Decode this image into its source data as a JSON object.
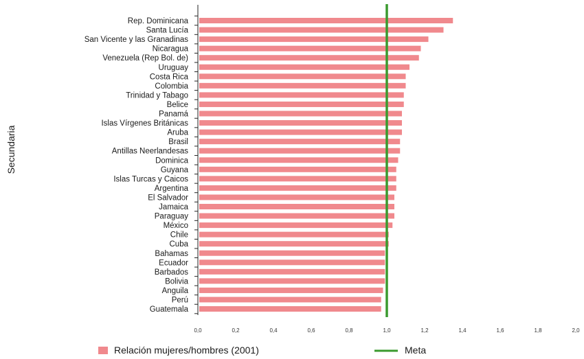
{
  "chart_data": {
    "type": "bar",
    "orientation": "horizontal",
    "ylabel": "Secundaria",
    "xlabel": "",
    "xlim": [
      0,
      2.0
    ],
    "x_ticks": [
      "0,0",
      "0,2",
      "0,4",
      "0,6",
      "0,8",
      "1,0",
      "1,2",
      "1,4",
      "1,6",
      "1,8",
      "2,0"
    ],
    "grid": false,
    "categories": [
      "Rep. Dominicana",
      "Santa Lucía",
      "San Vicente y las Granadinas",
      "Nicaragua",
      "Venezuela (Rep  Bol. de)",
      "Uruguay",
      "Costa Rica",
      "Colombia",
      "Trinidad y Tabago",
      "Belice",
      "Panamá",
      "Islas Vírgenes Británicas",
      "Aruba",
      "Brasil",
      "Antillas Neerlandesas",
      "Dominica",
      "Guyana",
      "Islas Turcas y Caicos",
      "Argentina",
      "El Salvador",
      "Jamaica",
      "Paraguay",
      "México",
      "Chile",
      "Cuba",
      "Bahamas",
      "Ecuador",
      "Barbados",
      "Bolivia",
      "Anguila",
      "Perú",
      "Guatemala"
    ],
    "series": [
      {
        "name": "Relación mujeres/hombres (2001)",
        "color": "#f0898d",
        "values": [
          1.35,
          1.3,
          1.22,
          1.18,
          1.17,
          1.12,
          1.1,
          1.1,
          1.09,
          1.09,
          1.08,
          1.08,
          1.08,
          1.07,
          1.07,
          1.06,
          1.05,
          1.05,
          1.05,
          1.04,
          1.04,
          1.04,
          1.03,
          1.01,
          1.01,
          0.99,
          0.99,
          0.99,
          0.99,
          0.98,
          0.97,
          0.97
        ]
      }
    ],
    "reference_line": {
      "name": "Meta",
      "value": 1.0,
      "color": "#3a9a2e"
    },
    "legend_position": "bottom"
  }
}
